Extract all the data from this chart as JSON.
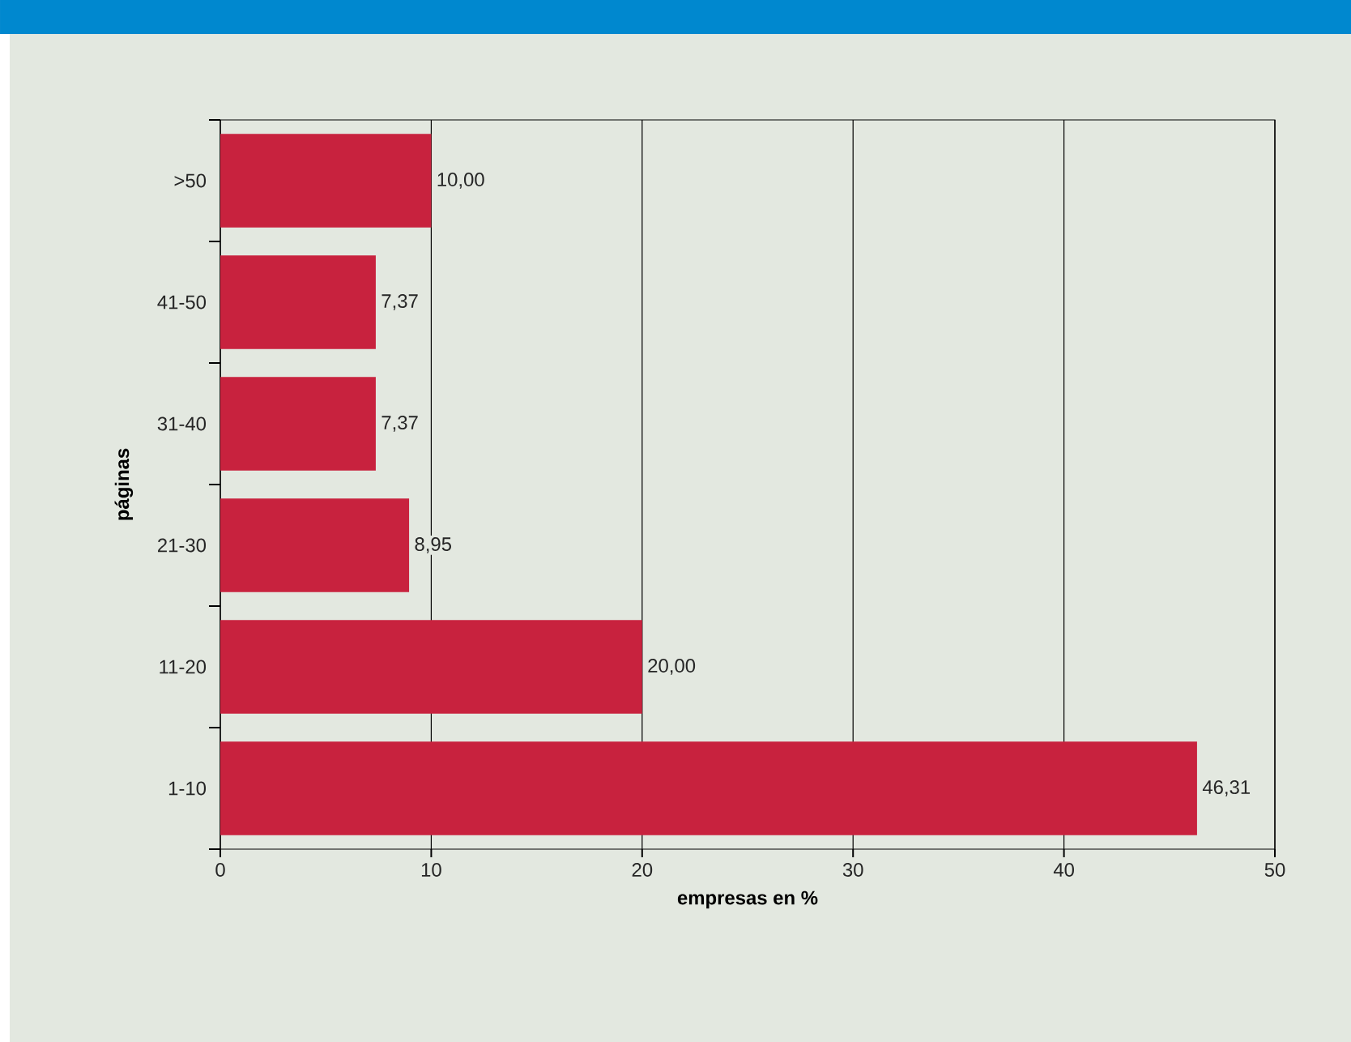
{
  "chart_data": {
    "type": "bar",
    "orientation": "horizontal",
    "categories": [
      ">50",
      "41-50",
      "31-40",
      "21-30",
      "11-20",
      "1-10"
    ],
    "values": [
      10,
      7.37,
      7.37,
      8.95,
      20,
      46.31
    ],
    "value_labels": [
      "10,00",
      "7,37",
      "7,37",
      "8,95",
      "20,00",
      "46,31"
    ],
    "color": "#c8223e",
    "xlabel": "empresas en %",
    "ylabel": "páginas",
    "xlim": [
      0,
      50
    ],
    "xticks": [
      0,
      10,
      20,
      30,
      40,
      50
    ],
    "grid": "x"
  }
}
